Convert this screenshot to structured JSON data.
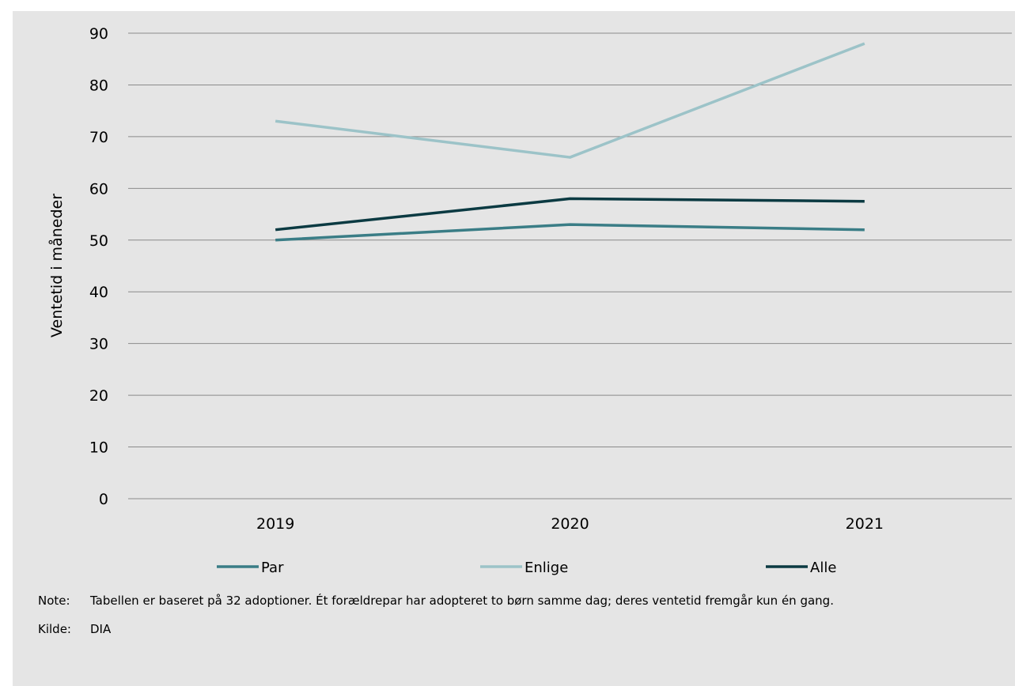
{
  "chart_data": {
    "type": "line",
    "categories": [
      "2019",
      "2020",
      "2021"
    ],
    "series": [
      {
        "name": "Par",
        "values": [
          50,
          53,
          52
        ],
        "color": "#3a7d86"
      },
      {
        "name": "Enlige",
        "values": [
          73,
          66,
          88
        ],
        "color": "#9cc3c8"
      },
      {
        "name": "Alle",
        "values": [
          52,
          58,
          57.5
        ],
        "color": "#0b3a42"
      }
    ],
    "xlabel": "",
    "ylabel": "Ventetid i måneder",
    "ylim": [
      0,
      90
    ],
    "yticks": [
      0,
      10,
      20,
      30,
      40,
      50,
      60,
      70,
      80,
      90
    ],
    "grid": true,
    "legend_position": "bottom"
  },
  "notes": {
    "note_label": "Note:",
    "note_text": "Tabellen er baseret på 32 adoptioner. Ét forældrepar har adopteret to børn samme dag; deres ventetid fremgår kun én gang.",
    "source_label": "Kilde:",
    "source_text": "DIA"
  }
}
